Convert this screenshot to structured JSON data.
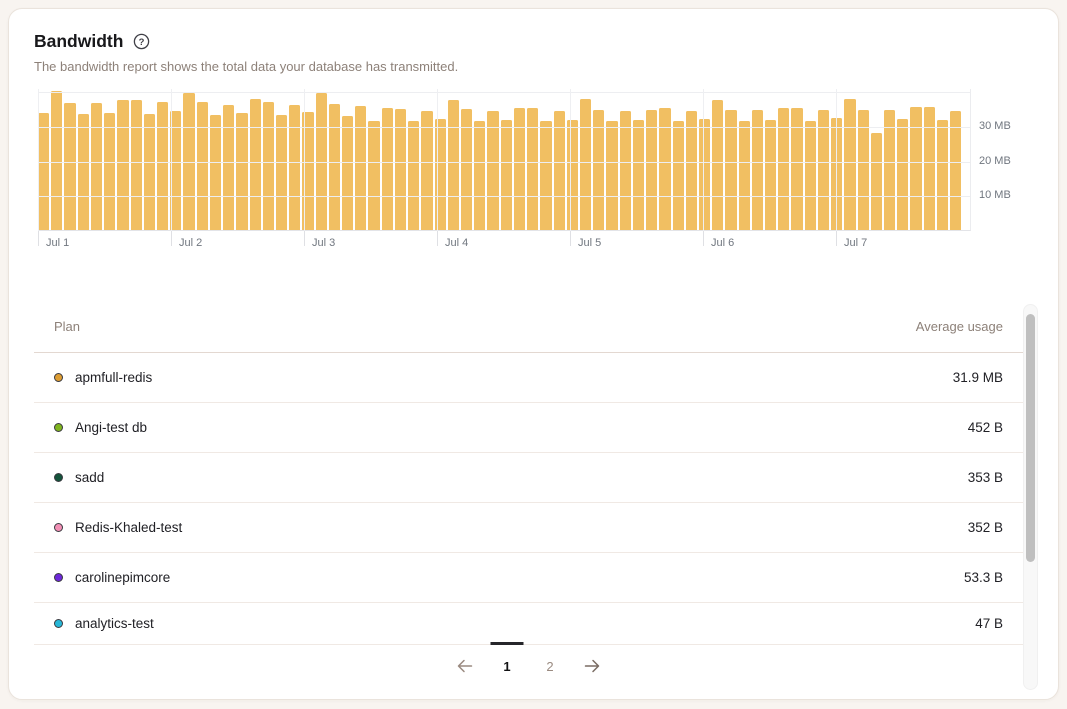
{
  "header": {
    "title": "Bandwidth",
    "help_icon": "circled-question-icon",
    "subtitle": "The bandwidth report shows the total data your database has transmitted."
  },
  "chart_data": {
    "type": "bar",
    "title": "Bandwidth transmitted per interval",
    "unit": "MB",
    "bar_color": "#F1BF62",
    "x_tick_labels": [
      "Jul 1",
      "Jul 2",
      "Jul 3",
      "Jul 4",
      "Jul 5",
      "Jul 6",
      "Jul 7"
    ],
    "bars_per_day": 10,
    "y_tick_labels": [
      "30 MB",
      "20 MB",
      "10 MB"
    ],
    "y_gridlines_mb": [
      40,
      30,
      20,
      10
    ],
    "ylim": [
      0,
      41
    ],
    "grid": true,
    "legend": "none",
    "values_mb": [
      33.8,
      40.0,
      36.8,
      33.5,
      36.8,
      33.8,
      37.6,
      37.6,
      33.5,
      37.1,
      34.4,
      39.7,
      37.1,
      33.2,
      36.2,
      33.8,
      37.9,
      37.1,
      33.2,
      36.2,
      34.1,
      39.7,
      36.5,
      32.9,
      35.9,
      31.5,
      35.3,
      35.0,
      31.5,
      34.4,
      32.1,
      37.6,
      35.0,
      31.5,
      34.4,
      31.8,
      35.3,
      35.3,
      31.5,
      34.4,
      31.8,
      37.9,
      34.7,
      31.5,
      34.4,
      31.8,
      34.7,
      35.3,
      31.5,
      34.4,
      32.1,
      37.6,
      34.7,
      31.5,
      34.7,
      31.8,
      35.3,
      35.3,
      31.5,
      34.7,
      32.4,
      37.9,
      34.7,
      27.9,
      34.7,
      32.1,
      35.6,
      35.6,
      31.8,
      34.4
    ]
  },
  "table": {
    "columns": {
      "plan": "Plan",
      "usage": "Average usage"
    },
    "rows": [
      {
        "name": "apmfull-redis",
        "dot_color": "#DD9D33",
        "usage": "31.9 MB"
      },
      {
        "name": "Angi-test db",
        "dot_color": "#7FB41F",
        "usage": "452 B"
      },
      {
        "name": "sadd",
        "dot_color": "#14533B",
        "usage": "353 B"
      },
      {
        "name": "Redis-Khaled-test",
        "dot_color": "#F290B5",
        "usage": "352 B"
      },
      {
        "name": "carolinepimcore",
        "dot_color": "#6D28D9",
        "usage": "53.3 B"
      },
      {
        "name": "analytics-test",
        "dot_color": "#27B7D7",
        "usage": "47 B"
      }
    ]
  },
  "pagination": {
    "prev_icon": "arrow-left-icon",
    "next_icon": "arrow-right-icon",
    "pages": {
      "p1": "1",
      "p2": "2"
    },
    "active_page": "1"
  },
  "colors": {
    "page_background": "#F8F4F0",
    "card_background": "#FFFFFF",
    "bar": "#F1BF62",
    "muted_text": "#8D8179",
    "axis_text": "#70767F"
  }
}
